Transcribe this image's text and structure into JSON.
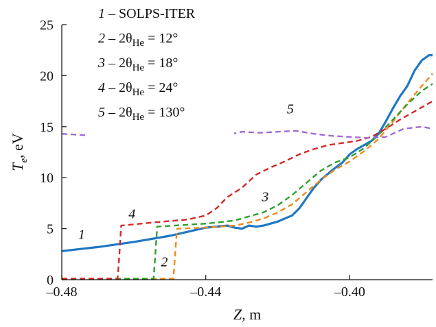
{
  "chart_data": {
    "type": "line",
    "xlabel": "Z, m",
    "ylabel": "Te, eV",
    "xlabel_parts": {
      "sym": "Z",
      "unit": ", m"
    },
    "ylabel_parts": {
      "sym": "T",
      "sub": "e",
      "unit": ", eV"
    },
    "xlim": [
      -0.48,
      -0.377
    ],
    "ylim": [
      0,
      25
    ],
    "xticks": [
      -0.48,
      -0.44,
      -0.4
    ],
    "xtick_labels": [
      "–0.48",
      "–0.44",
      "–0.40"
    ],
    "yticks": [
      0,
      5,
      10,
      15,
      20,
      25
    ],
    "ytick_labels": [
      "0",
      "5",
      "10",
      "15",
      "20",
      "25"
    ],
    "grid": false,
    "legend_position": "top-left",
    "series": [
      {
        "id": "1",
        "name": "1 – SOLPS-ITER",
        "legend": {
          "num": "1",
          "text": " – SOLPS-ITER"
        },
        "color": "#1f77c4",
        "dash": "solid",
        "x": [
          -0.48,
          -0.47,
          -0.46,
          -0.45,
          -0.445,
          -0.44,
          -0.437,
          -0.434,
          -0.432,
          -0.43,
          -0.428,
          -0.426,
          -0.424,
          -0.422,
          -0.42,
          -0.418,
          -0.416,
          -0.414,
          -0.412,
          -0.41,
          -0.408,
          -0.405,
          -0.402,
          -0.4,
          -0.398,
          -0.396,
          -0.394,
          -0.392,
          -0.39,
          -0.388,
          -0.386,
          -0.384,
          -0.382,
          -0.38,
          -0.378,
          -0.377
        ],
        "y": [
          2.8,
          3.2,
          3.7,
          4.3,
          4.7,
          5.1,
          5.2,
          5.3,
          5.1,
          5.0,
          5.3,
          5.2,
          5.3,
          5.5,
          5.7,
          6.0,
          6.3,
          7.0,
          8.0,
          9.0,
          9.8,
          10.7,
          11.5,
          12.3,
          12.8,
          13.2,
          13.6,
          14.3,
          15.5,
          16.8,
          18.0,
          19.0,
          20.5,
          21.5,
          22.0,
          22.0
        ]
      },
      {
        "id": "2",
        "name": "2 – 2θHe = 12°",
        "legend": {
          "num": "2",
          "pre": " – 2θ",
          "sub": "He",
          "post": " = 12°"
        },
        "color": "#f28a1a",
        "dash": "dashed",
        "x": [
          -0.48,
          -0.46,
          -0.449,
          -0.4485,
          -0.448,
          -0.44,
          -0.432,
          -0.428,
          -0.424,
          -0.42,
          -0.416,
          -0.412,
          -0.408,
          -0.404,
          -0.4,
          -0.396,
          -0.392,
          -0.388,
          -0.384,
          -0.38,
          -0.377
        ],
        "y": [
          0.1,
          0.1,
          0.1,
          2.5,
          5.0,
          5.1,
          5.3,
          5.6,
          6.0,
          6.6,
          7.4,
          8.6,
          9.8,
          10.8,
          11.6,
          12.6,
          13.8,
          15.5,
          17.3,
          19.0,
          20.2
        ]
      },
      {
        "id": "3",
        "name": "3 – 2θHe = 18°",
        "legend": {
          "num": "3",
          "pre": " – 2θ",
          "sub": "He",
          "post": " = 18°"
        },
        "color": "#2ca02c",
        "dash": "dashed",
        "x": [
          -0.48,
          -0.46,
          -0.4545,
          -0.454,
          -0.4535,
          -0.44,
          -0.432,
          -0.428,
          -0.424,
          -0.42,
          -0.416,
          -0.412,
          -0.408,
          -0.404,
          -0.4,
          -0.396,
          -0.392,
          -0.388,
          -0.384,
          -0.38,
          -0.377
        ],
        "y": [
          0.1,
          0.1,
          0.1,
          2.5,
          5.2,
          5.5,
          5.8,
          6.2,
          6.6,
          7.3,
          8.3,
          9.5,
          10.7,
          11.5,
          12.0,
          12.9,
          14.2,
          15.7,
          17.2,
          18.5,
          19.2
        ]
      },
      {
        "id": "4",
        "name": "4 – 2θHe = 24°",
        "legend": {
          "num": "4",
          "pre": " – 2θ",
          "sub": "He",
          "post": " = 24°"
        },
        "color": "#d62728",
        "dash": "dashed",
        "x": [
          -0.48,
          -0.47,
          -0.4645,
          -0.464,
          -0.4635,
          -0.455,
          -0.445,
          -0.44,
          -0.437,
          -0.434,
          -0.43,
          -0.426,
          -0.422,
          -0.418,
          -0.414,
          -0.41,
          -0.406,
          -0.402,
          -0.398,
          -0.394,
          -0.39,
          -0.386,
          -0.382,
          -0.378,
          -0.377
        ],
        "y": [
          0.1,
          0.1,
          0.1,
          2.5,
          5.3,
          5.6,
          5.9,
          6.3,
          7.0,
          8.1,
          9.0,
          10.3,
          11.0,
          11.6,
          12.3,
          12.8,
          13.2,
          13.4,
          13.6,
          14.0,
          14.8,
          15.7,
          16.5,
          17.3,
          17.5
        ]
      },
      {
        "id": "5",
        "name": "5 – 2θHe = 130°",
        "legend": {
          "num": "5",
          "pre": " – 2θ",
          "sub": "He",
          "post": " = 130°"
        },
        "color": "#a06bd6",
        "dash": "dashed",
        "x": [
          -0.48,
          -0.47,
          -0.46,
          -0.45,
          -0.44,
          -0.435,
          -0.43,
          -0.425,
          -0.42,
          -0.415,
          -0.41,
          -0.405,
          -0.4,
          -0.395,
          -0.39,
          -0.385,
          -0.38,
          -0.377
        ],
        "y": [
          14.3,
          14.1,
          14.0,
          14.1,
          13.9,
          14.1,
          14.5,
          14.4,
          14.5,
          14.6,
          14.3,
          14.1,
          14.0,
          13.9,
          14.0,
          14.8,
          15.0,
          14.8
        ]
      }
    ],
    "curve_labels": [
      {
        "text": "1",
        "x": -0.4745,
        "y": 4.0
      },
      {
        "text": "2",
        "x": -0.4515,
        "y": 1.3
      },
      {
        "text": "3",
        "x": -0.4235,
        "y": 7.7
      },
      {
        "text": "4",
        "x": -0.4605,
        "y": 6.0
      },
      {
        "text": "5",
        "x": -0.4165,
        "y": 16.3
      }
    ]
  }
}
